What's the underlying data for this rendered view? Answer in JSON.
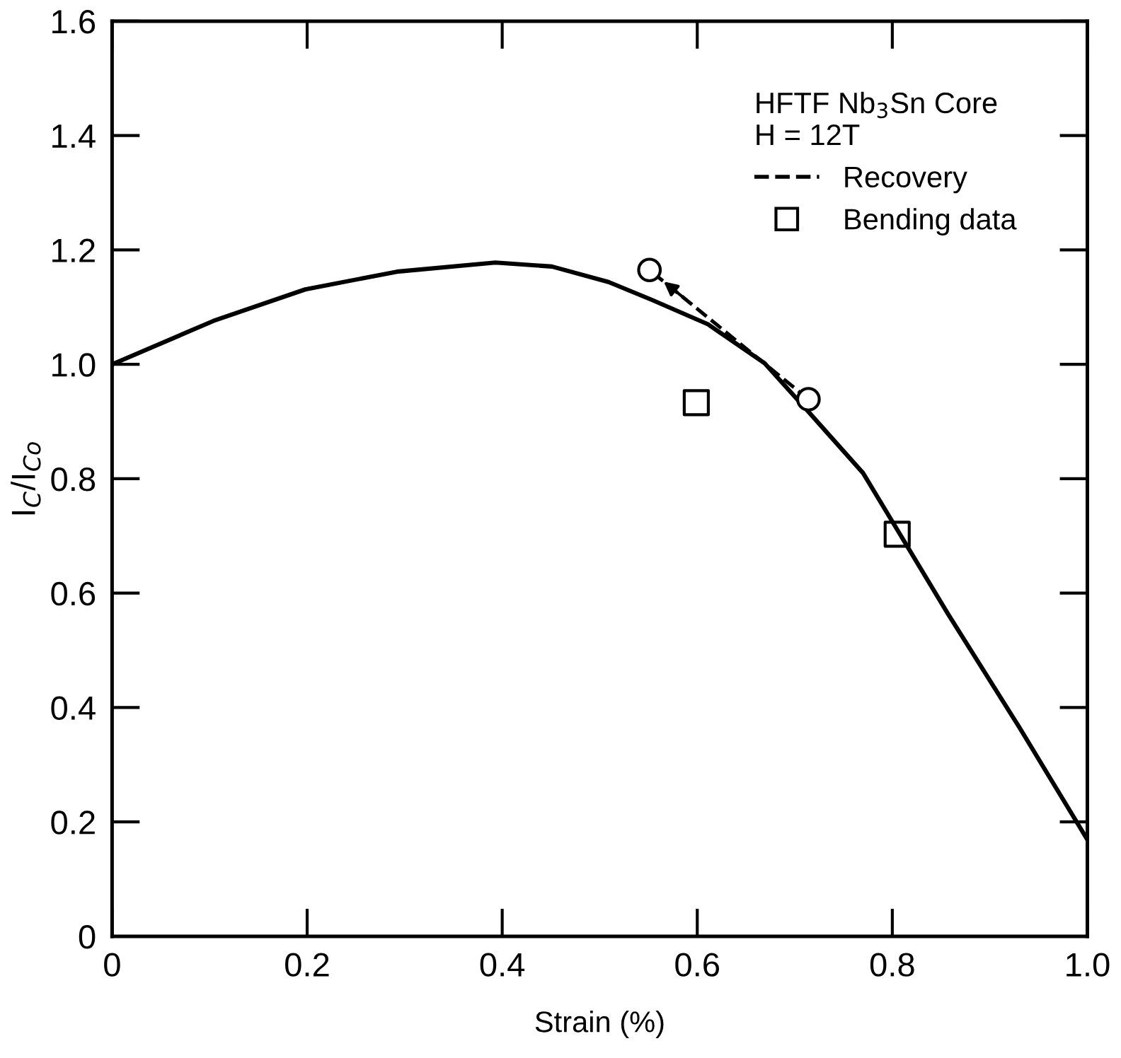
{
  "chart_data": {
    "type": "line",
    "xlabel": "Strain (%)",
    "ylabel": "I$_{C}$/I$_{Co}$",
    "legend_title": "HFTF Nb$_{3}$Sn Core\nH = 12T",
    "series": [
      {
        "color": "#000000",
        "line_style": "solid",
        "marker": "none",
        "x": [
          0,
          0.104,
          0.198,
          0.292,
          0.393,
          0.451,
          0.509,
          0.553,
          0.611,
          0.669,
          0.712,
          0.77,
          0.857,
          0.93,
          1.0
        ],
        "values": [
          1.0,
          1.076,
          1.131,
          1.162,
          1.178,
          1.171,
          1.144,
          1.113,
          1.07,
          1.002,
          0.921,
          0.81,
          0.564,
          0.366,
          0.169
        ]
      },
      {
        "name": "Recovery",
        "color": "#000000",
        "line_style": "dashed",
        "marker": "circle",
        "x": [
          0.714,
          0.551
        ],
        "values": [
          0.939,
          1.165
        ]
      },
      {
        "type": "scatter",
        "name": "Bending data",
        "color": "#000000",
        "marker": "square",
        "x": [
          0.599,
          0.805
        ],
        "values": [
          0.933,
          0.703
        ]
      }
    ],
    "xlim": [
      0,
      1.0
    ],
    "ylim": [
      0,
      1.6
    ],
    "xticks": [
      0,
      0.2,
      0.4,
      0.6,
      0.8,
      {
        "value": 1.0,
        "label": "1.0"
      }
    ],
    "yticks": [
      0,
      0.2,
      0.4,
      0.6,
      0.8,
      {
        "value": 1.0,
        "label": "1.0"
      },
      1.2,
      1.4,
      1.6
    ],
    "grid": false,
    "legend": "top right"
  }
}
